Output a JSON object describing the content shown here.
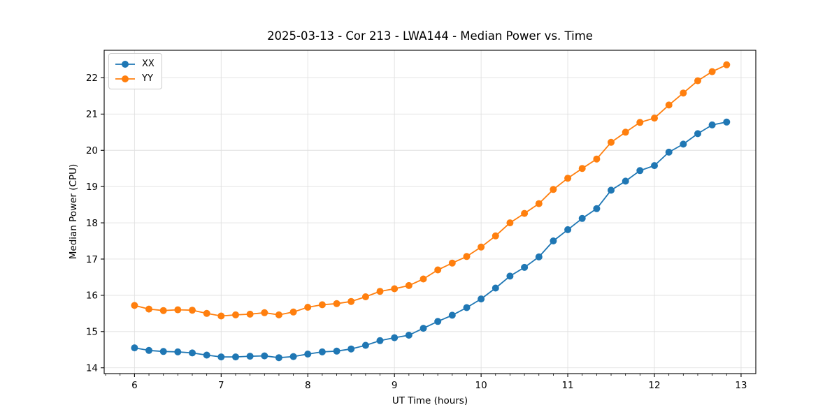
{
  "chart_data": {
    "type": "line",
    "title": "2025-03-13 - Cor 213 - LWA144 - Median Power vs. Time",
    "xlabel": "UT Time (hours)",
    "ylabel": "Median Power (CPU)",
    "xlim": [
      5.65,
      13.17
    ],
    "ylim": [
      13.84,
      22.76
    ],
    "x_ticks": [
      6,
      7,
      8,
      9,
      10,
      11,
      12,
      13
    ],
    "y_ticks": [
      14,
      15,
      16,
      17,
      18,
      19,
      20,
      21,
      22
    ],
    "x_minor_tick_step": 0.16667,
    "grid": true,
    "legend_position": "upper left",
    "marker": "o",
    "x": [
      6.0,
      6.1667,
      6.3333,
      6.5,
      6.6667,
      6.8333,
      7.0,
      7.1667,
      7.3333,
      7.5,
      7.6667,
      7.8333,
      8.0,
      8.1667,
      8.3333,
      8.5,
      8.6667,
      8.8333,
      9.0,
      9.1667,
      9.3333,
      9.5,
      9.6667,
      9.8333,
      10.0,
      10.1667,
      10.3333,
      10.5,
      10.6667,
      10.8333,
      11.0,
      11.1667,
      11.3333,
      11.5,
      11.6667,
      11.8333,
      12.0,
      12.1667,
      12.3333,
      12.5,
      12.6667,
      12.8333
    ],
    "series": [
      {
        "name": "XX",
        "color": "#1f77b4",
        "values": [
          14.55,
          14.48,
          14.45,
          14.44,
          14.41,
          14.35,
          14.3,
          14.3,
          14.32,
          14.33,
          14.28,
          14.31,
          14.38,
          14.44,
          14.46,
          14.52,
          14.62,
          14.75,
          14.83,
          14.9,
          15.09,
          15.28,
          15.45,
          15.66,
          15.9,
          16.2,
          16.53,
          16.77,
          17.06,
          17.5,
          17.81,
          18.12,
          18.39,
          18.9,
          19.15,
          19.44,
          19.58,
          19.95,
          20.17,
          20.46,
          20.7,
          20.78
        ]
      },
      {
        "name": "YY",
        "color": "#ff7f0e",
        "values": [
          15.72,
          15.62,
          15.58,
          15.6,
          15.59,
          15.5,
          15.43,
          15.46,
          15.48,
          15.52,
          15.46,
          15.54,
          15.67,
          15.74,
          15.77,
          15.83,
          15.96,
          16.11,
          16.18,
          16.27,
          16.45,
          16.7,
          16.89,
          17.07,
          17.33,
          17.64,
          18.0,
          18.26,
          18.53,
          18.92,
          19.23,
          19.5,
          19.76,
          20.22,
          20.5,
          20.77,
          20.89,
          21.25,
          21.58,
          21.92,
          22.17,
          22.36
        ]
      }
    ],
    "style": {
      "grid_color": "#e0e0e0",
      "spine_color": "#000000",
      "tick_color": "#000000",
      "background": "#ffffff",
      "marker_radius": 5,
      "line_width": 1.8
    }
  }
}
